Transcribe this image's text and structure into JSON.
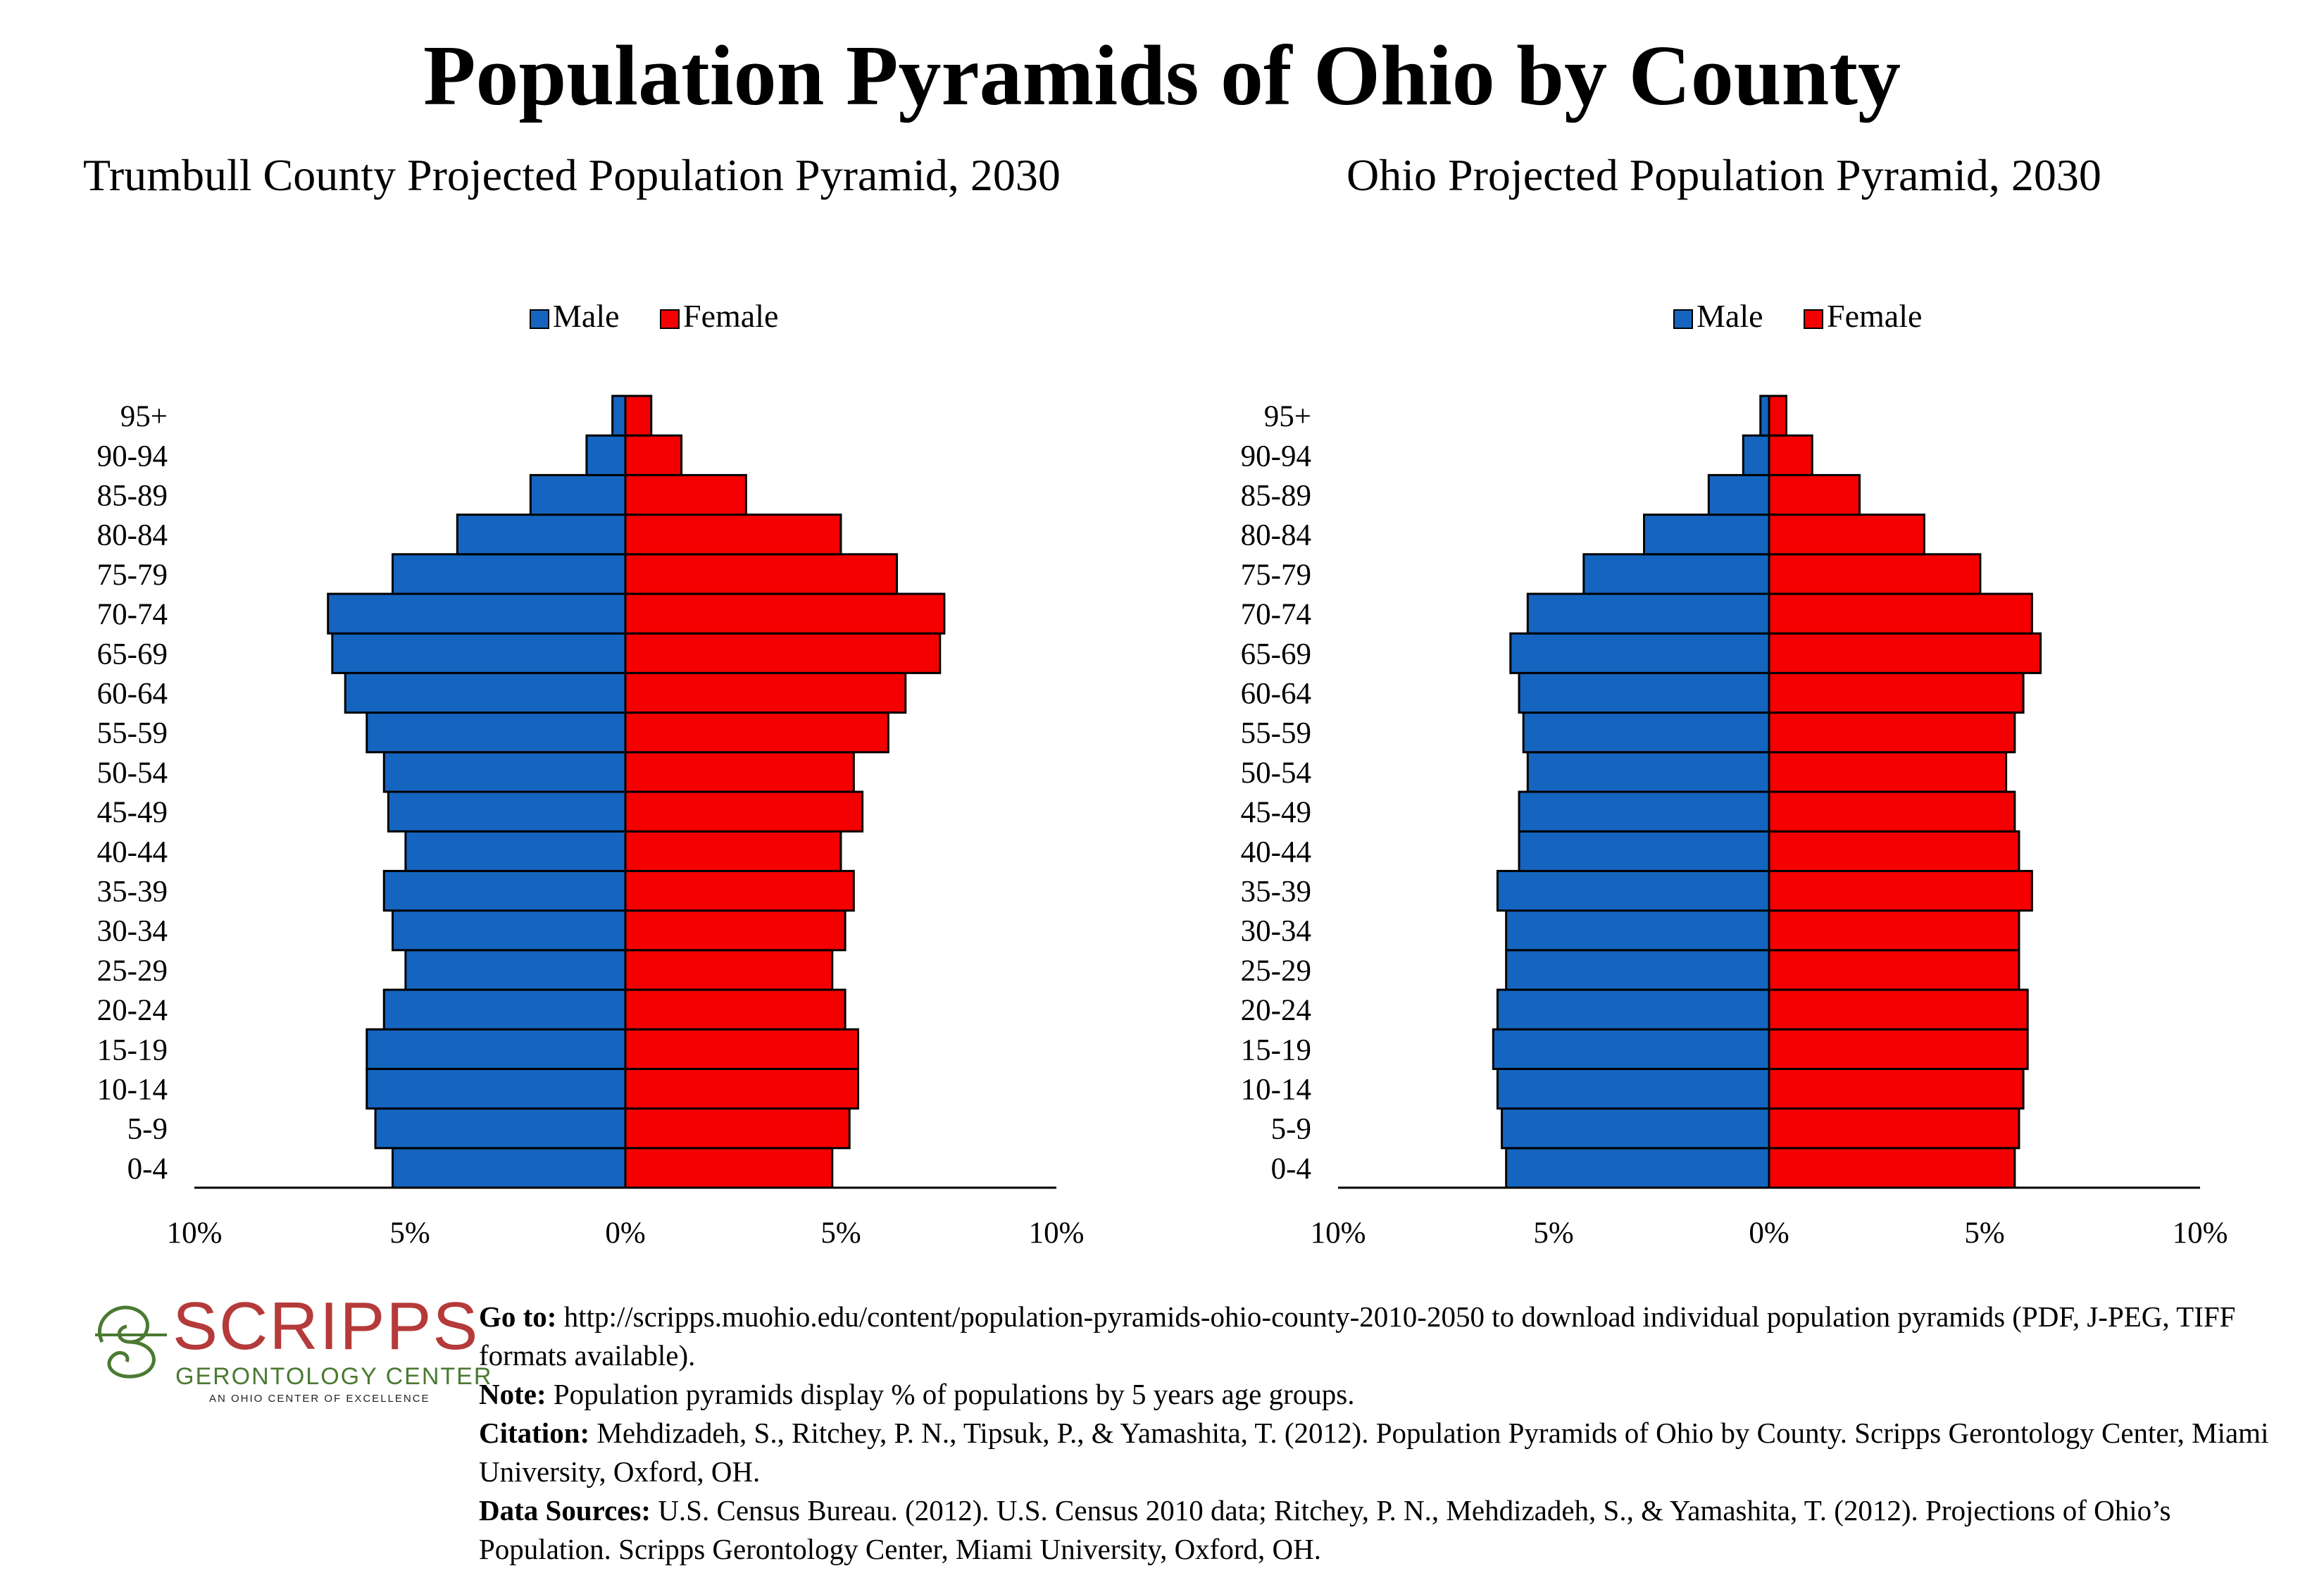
{
  "title": "Population Pyramids of Ohio by County",
  "colors": {
    "male": "#1565c0",
    "female": "#f50000",
    "logo_red": "#b53a3a",
    "logo_green": "#4a7a32"
  },
  "chart_data": [
    {
      "type": "bar",
      "orientation": "horizontal-pyramid",
      "title": "Trumbull County Projected Population Pyramid, 2030",
      "legend": {
        "placement": "top-center",
        "entries": [
          "Male",
          "Female"
        ]
      },
      "categories": [
        "0-4",
        "5-9",
        "10-14",
        "15-19",
        "20-24",
        "25-29",
        "30-34",
        "35-39",
        "40-44",
        "45-49",
        "50-54",
        "55-59",
        "60-64",
        "65-69",
        "70-74",
        "75-79",
        "80-84",
        "85-89",
        "90-94",
        "95+"
      ],
      "series": [
        {
          "name": "Male",
          "values": [
            5.4,
            5.8,
            6.0,
            6.0,
            5.6,
            5.1,
            5.4,
            5.6,
            5.1,
            5.5,
            5.6,
            6.0,
            6.5,
            6.8,
            6.9,
            5.4,
            3.9,
            2.2,
            0.9,
            0.3
          ]
        },
        {
          "name": "Female",
          "values": [
            4.8,
            5.2,
            5.4,
            5.4,
            5.1,
            4.8,
            5.1,
            5.3,
            5.0,
            5.5,
            5.3,
            6.1,
            6.5,
            7.3,
            7.4,
            6.3,
            5.0,
            2.8,
            1.3,
            0.6
          ]
        }
      ],
      "xlim": [
        -10,
        10
      ],
      "x_ticks": [
        "10%",
        "5%",
        "0%",
        "5%",
        "10%"
      ]
    },
    {
      "type": "bar",
      "orientation": "horizontal-pyramid",
      "title": "Ohio Projected Population Pyramid, 2030",
      "legend": {
        "placement": "top-center",
        "entries": [
          "Male",
          "Female"
        ]
      },
      "categories": [
        "0-4",
        "5-9",
        "10-14",
        "15-19",
        "20-24",
        "25-29",
        "30-34",
        "35-39",
        "40-44",
        "45-49",
        "50-54",
        "55-59",
        "60-64",
        "65-69",
        "70-74",
        "75-79",
        "80-84",
        "85-89",
        "90-94",
        "95+"
      ],
      "series": [
        {
          "name": "Male",
          "values": [
            6.1,
            6.2,
            6.3,
            6.4,
            6.3,
            6.1,
            6.1,
            6.3,
            5.8,
            5.8,
            5.6,
            5.7,
            5.8,
            6.0,
            5.6,
            4.3,
            2.9,
            1.4,
            0.6,
            0.2
          ]
        },
        {
          "name": "Female",
          "values": [
            5.7,
            5.8,
            5.9,
            6.0,
            6.0,
            5.8,
            5.8,
            6.1,
            5.8,
            5.7,
            5.5,
            5.7,
            5.9,
            6.3,
            6.1,
            4.9,
            3.6,
            2.1,
            1.0,
            0.4
          ]
        }
      ],
      "xlim": [
        -10,
        10
      ],
      "x_ticks": [
        "10%",
        "5%",
        "0%",
        "5%",
        "10%"
      ]
    }
  ],
  "logo": {
    "name": "SCRIPPS",
    "line2": "GERONTOLOGY CENTER",
    "line3": "AN OHIO CENTER OF EXCELLENCE"
  },
  "footer": {
    "goto_label": "Go to:",
    "goto_text": "http://scripps.muohio.edu/content/population-pyramids-ohio-county-2010-2050 to download individual population pyramids (PDF, J-PEG, TIFF formats available).",
    "note_label": "Note:",
    "note_text": "Population pyramids display % of populations by 5 years age groups.",
    "citation_label": "Citation:",
    "citation_text": "Mehdizadeh, S., Ritchey, P. N., Tipsuk, P., & Yamashita, T. (2012). Population Pyramids of Ohio by County. Scripps Gerontology Center, Miami University, Oxford, OH.",
    "sources_label": "Data Sources:",
    "sources_text": "U.S. Census Bureau. (2012). U.S. Census 2010 data; Ritchey, P. N., Mehdizadeh, S., & Yamashita, T. (2012). Projections of Ohio’s Population. Scripps Gerontology Center, Miami University, Oxford, OH."
  }
}
